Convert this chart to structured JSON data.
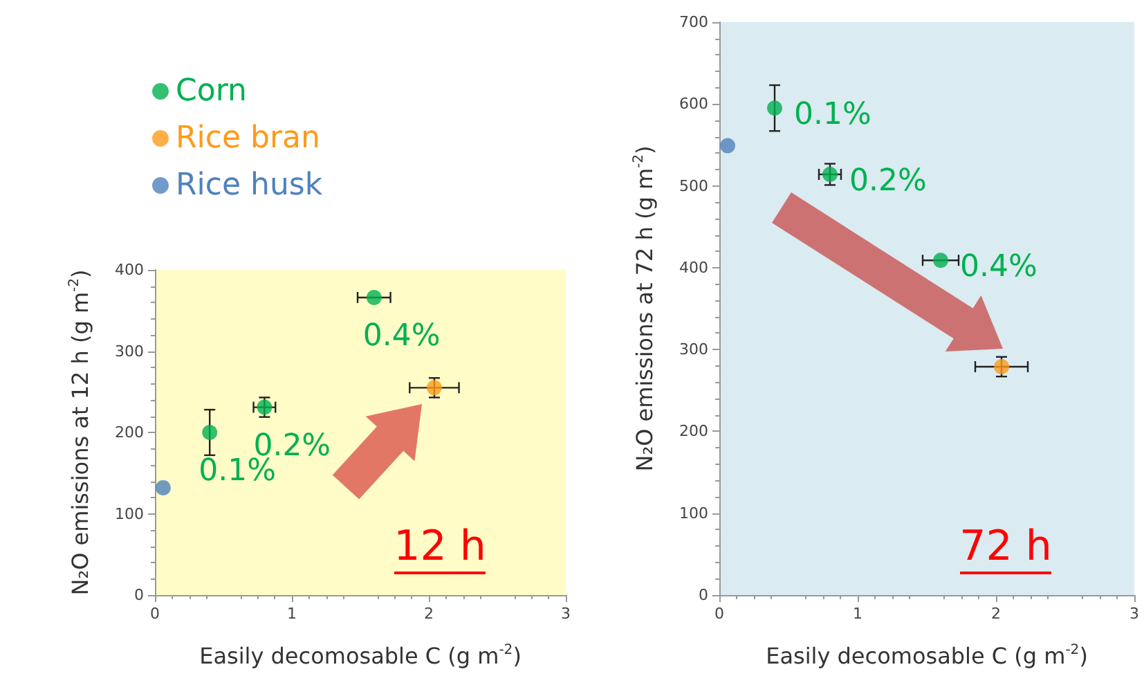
{
  "chart_data": [
    {
      "type": "scatter",
      "xlabel": "Easily decomosable C (g m$^{-2}$)",
      "ylabel": "N₂O emissions at 12 h (g m$^{-2}$)",
      "xlim": [
        0,
        3
      ],
      "xticks": [
        0,
        1,
        2,
        3
      ],
      "ylim": [
        0,
        400
      ],
      "yticks": [
        0,
        100,
        200,
        300,
        400
      ],
      "legend": "top left",
      "marker": "circle",
      "grid": false,
      "series": [
        {
          "name": "Corn",
          "color": "#00b050",
          "x": [
            0.4,
            0.8,
            1.6
          ],
          "values": [
            200,
            231,
            366
          ],
          "errors": [
            28,
            12,
            null
          ],
          "xerrors": [
            null,
            0.08,
            0.12
          ]
        },
        {
          "name": "Rice bran",
          "color": "#ff9a1a",
          "x": [
            2.04
          ],
          "values": [
            255
          ],
          "errors": [
            12
          ],
          "xerrors": [
            0.18
          ]
        },
        {
          "name": "Rice husk",
          "color": "#4f81bd",
          "x": [
            0.06
          ],
          "values": [
            132
          ],
          "errors": [
            null
          ],
          "xerrors": [
            null
          ]
        }
      ],
      "annotations": [
        {
          "text": "0.1%",
          "x": 0.4,
          "y": 200
        },
        {
          "text": "0.2%",
          "x": 0.8,
          "y": 231
        },
        {
          "text": "0.4%",
          "x": 1.6,
          "y": 366
        },
        "12 h"
      ]
    },
    {
      "type": "scatter",
      "xlabel": "Easily decomosable C (g m$^{-2}$)",
      "ylabel": "N₂O emissions at 72 h (g m$^{-2}$)",
      "xlim": [
        0,
        3
      ],
      "xticks": [
        0,
        1,
        2,
        3
      ],
      "ylim": [
        0,
        700
      ],
      "yticks": [
        0,
        100,
        200,
        300,
        400,
        500,
        600,
        700
      ],
      "marker": "circle",
      "grid": false,
      "series": [
        {
          "color": "#00b050",
          "x": [
            0.4,
            0.8,
            1.6
          ],
          "values": [
            595,
            514,
            409
          ],
          "errors": [
            28,
            13,
            null
          ],
          "xerrors": [
            null,
            0.08,
            0.13
          ]
        },
        {
          "color": "#ff9a1a",
          "x": [
            2.04
          ],
          "values": [
            279
          ],
          "errors": [
            12
          ],
          "xerrors": [
            0.19
          ]
        },
        {
          "color": "#4f81bd",
          "x": [
            0.06
          ],
          "values": [
            549
          ],
          "errors": [
            null
          ],
          "xerrors": [
            null
          ]
        }
      ],
      "annotations": [
        {
          "text": "0.1%",
          "x": 0.4,
          "y": 595
        },
        {
          "text": "0.2%",
          "x": 0.8,
          "y": 514
        },
        {
          "text": "0.4%",
          "x": 1.6,
          "y": 409
        },
        "72 h"
      ]
    }
  ]
}
